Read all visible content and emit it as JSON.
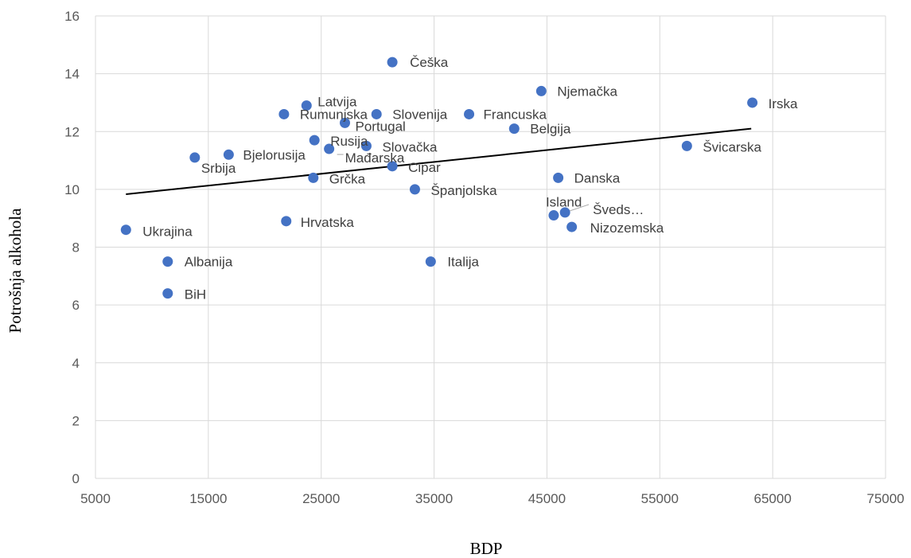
{
  "chart_data": {
    "type": "scatter",
    "title": "",
    "xlabel": "BDP",
    "ylabel": "Potrošnja alkohola",
    "xlim": [
      5000,
      75000
    ],
    "ylim": [
      0,
      16
    ],
    "xticks": [
      5000,
      15000,
      25000,
      35000,
      45000,
      55000,
      65000,
      75000
    ],
    "yticks": [
      0,
      2,
      4,
      6,
      8,
      10,
      12,
      14,
      16
    ],
    "grid": true,
    "legend": "none",
    "colors": {
      "marker": "#4472C4",
      "trendline": "#000000",
      "grid": "#d9d9d9"
    },
    "trendline": {
      "type": "linear",
      "x": [
        7700,
        63100
      ],
      "y": [
        9.83,
        12.1
      ]
    },
    "points": [
      {
        "label": "Češka",
        "x": 31300,
        "y": 14.4
      },
      {
        "label": "Njemačka",
        "x": 44500,
        "y": 13.4
      },
      {
        "label": "Irska",
        "x": 63200,
        "y": 13.0
      },
      {
        "label": "Latvija",
        "x": 23700,
        "y": 12.9
      },
      {
        "label": "Rumunjska",
        "x": 21700,
        "y": 12.6
      },
      {
        "label": "Slovenija",
        "x": 29900,
        "y": 12.6
      },
      {
        "label": "Francuska",
        "x": 38100,
        "y": 12.6
      },
      {
        "label": "Portugal",
        "x": 27100,
        "y": 12.3
      },
      {
        "label": "Belgija",
        "x": 42100,
        "y": 12.1
      },
      {
        "label": "Rusija",
        "x": 24400,
        "y": 11.7
      },
      {
        "label": "Slovačka",
        "x": 29000,
        "y": 11.5
      },
      {
        "label": "Švicarska",
        "x": 57400,
        "y": 11.5
      },
      {
        "label": "Mađarska",
        "x": 25700,
        "y": 11.4
      },
      {
        "label": "Bjelorusija",
        "x": 16800,
        "y": 11.2
      },
      {
        "label": "Srbija",
        "x": 13800,
        "y": 11.1
      },
      {
        "label": "Cipar",
        "x": 31300,
        "y": 10.8
      },
      {
        "label": "Grčka",
        "x": 24300,
        "y": 10.4
      },
      {
        "label": "Danska",
        "x": 46000,
        "y": 10.4
      },
      {
        "label": "Španjolska",
        "x": 33300,
        "y": 10.0
      },
      {
        "label": "Švedska",
        "x": 46600,
        "y": 9.2
      },
      {
        "label": "Island",
        "x": 45600,
        "y": 9.1
      },
      {
        "label": "Hrvatska",
        "x": 21900,
        "y": 8.9
      },
      {
        "label": "Nizozemska",
        "x": 47200,
        "y": 8.7
      },
      {
        "label": "Ukrajina",
        "x": 7700,
        "y": 8.6
      },
      {
        "label": "Albanija",
        "x": 11400,
        "y": 7.5
      },
      {
        "label": "Italija",
        "x": 34700,
        "y": 7.5
      },
      {
        "label": "BiH",
        "x": 11400,
        "y": 6.4
      }
    ],
    "label_display": {
      "Švedska": "Šveds…",
      "Mađarska": "Mađarska"
    }
  }
}
